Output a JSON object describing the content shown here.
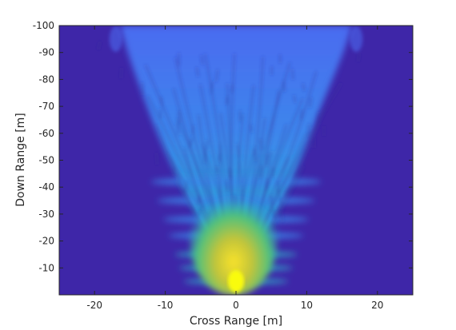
{
  "chart_data": {
    "type": "heatmap",
    "title": "",
    "xlabel": "Cross Range [m]",
    "ylabel": "Down Range [m]",
    "xlim": [
      -25,
      25
    ],
    "ylim": [
      -100,
      0
    ],
    "y_axis_direction": "reversed (0 at bottom, -100 at top)",
    "x_ticks": [
      -20,
      -10,
      0,
      10,
      20
    ],
    "x_tick_labels": [
      "-20",
      "-10",
      "0",
      "10",
      "20"
    ],
    "y_ticks": [
      -100,
      -90,
      -80,
      -70,
      -60,
      -50,
      -40,
      -30,
      -20,
      -10
    ],
    "y_tick_labels": [
      "-100",
      "-90",
      "-80",
      "-70",
      "-60",
      "-50",
      "-40",
      "-30",
      "-20",
      "-10"
    ],
    "colormap": "parula",
    "background_color": "#3e26a8",
    "grid": false,
    "features": [
      {
        "description": "radar beam cone from origin",
        "apex": [
          0,
          -2
        ],
        "spread_x_at_y": [
          [
            0,
            -3
          ],
          [
            2,
            5
          ],
          [
            7,
            -30
          ],
          [
            12,
            -60
          ],
          [
            17,
            -100
          ]
        ]
      },
      {
        "description": "peak intensity (yellow) near origin",
        "x": 0,
        "y": -3
      },
      {
        "description": "high intensity (green-yellow) region",
        "x_range": [
          -6,
          6
        ],
        "y_range": [
          -35,
          -5
        ]
      },
      {
        "description": "horizontal sidelobe bands",
        "y_values": [
          -5,
          -10,
          -15,
          -22,
          -28,
          -35,
          -42
        ]
      }
    ]
  }
}
